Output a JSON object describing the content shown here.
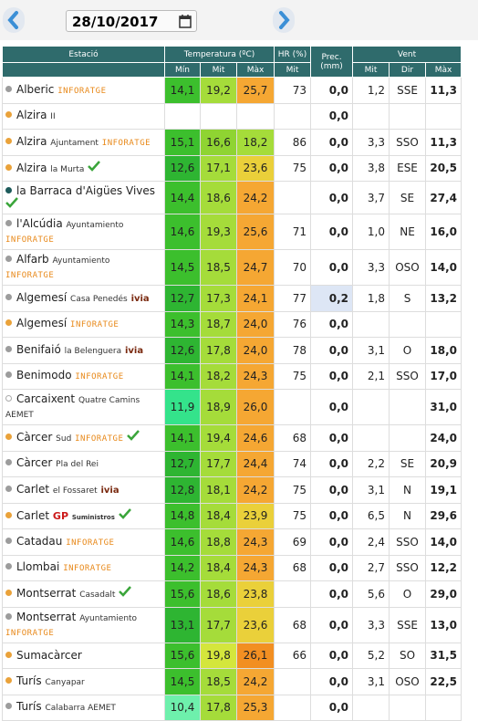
{
  "toolbar": {
    "date": "28/10/2017"
  },
  "table": {
    "header": {
      "station": "Estació",
      "temperature": "Temperatura (ºC)",
      "temperature_cols": [
        "Mín",
        "Mit",
        "Màx"
      ],
      "humidity": "HR (%)",
      "humidity_cols": [
        "Mit"
      ],
      "precipitation": "Prec. (mm)",
      "wind": "Vent",
      "wind_cols": [
        "Mit",
        "Dir",
        "Màx"
      ]
    },
    "rows": [
      {
        "dot": "gray",
        "label": [
          [
            "Alberic",
            "name"
          ],
          [
            "INFORATGE",
            "inforatge"
          ]
        ],
        "values": [
          "14,1",
          "19,2",
          "25,7",
          "73",
          "0,0",
          "1,2",
          "SSE",
          "11,3"
        ]
      },
      {
        "dot": "orange",
        "label": [
          [
            "Alzira",
            "name"
          ],
          [
            "II",
            "small"
          ]
        ],
        "values": [
          null,
          null,
          null,
          null,
          "0,0",
          null,
          null,
          null
        ]
      },
      {
        "dot": "orange",
        "label": [
          [
            "Alzira",
            "name"
          ],
          [
            "Ajuntament",
            "small"
          ],
          [
            "INFORATGE",
            "inforatge"
          ]
        ],
        "values": [
          "15,1",
          "16,6",
          "18,2",
          "86",
          "0,0",
          "3,3",
          "SSO",
          "11,3"
        ]
      },
      {
        "dot": "orange",
        "check": true,
        "label": [
          [
            "Alzira",
            "name"
          ],
          [
            "la Murta",
            "small"
          ]
        ],
        "values": [
          "12,6",
          "17,1",
          "23,6",
          "75",
          "0,0",
          "3,8",
          "ESE",
          "20,5"
        ]
      },
      {
        "dot": "teal",
        "check": true,
        "label": [
          [
            "la Barraca d'Aigües Vives",
            "name"
          ]
        ],
        "values": [
          "14,4",
          "18,6",
          "24,2",
          null,
          "0,0",
          "3,7",
          "SE",
          "27,4"
        ]
      },
      {
        "dot": "gray",
        "label": [
          [
            "l'Alcúdia",
            "name"
          ],
          [
            "Ayuntamiento",
            "small"
          ],
          [
            "INFORATGE",
            "inforatge"
          ]
        ],
        "values": [
          "14,6",
          "19,3",
          "25,6",
          "71",
          "0,0",
          "1,0",
          "NE",
          "16,0"
        ]
      },
      {
        "dot": "gray",
        "label": [
          [
            "Alfarb",
            "name"
          ],
          [
            "Ayuntamiento",
            "small"
          ],
          [
            "INFORATGE",
            "inforatge"
          ]
        ],
        "values": [
          "14,5",
          "18,5",
          "24,7",
          "70",
          "0,0",
          "3,3",
          "OSO",
          "14,0"
        ]
      },
      {
        "dot": "gray",
        "label": [
          [
            "Algemesí",
            "name"
          ],
          [
            "Casa Penedés",
            "small"
          ],
          [
            "ivia",
            "ivia"
          ]
        ],
        "values": [
          "12,7",
          "17,3",
          "24,1",
          "77",
          "0,2",
          "1,8",
          "S",
          "13,2"
        ]
      },
      {
        "dot": "orange",
        "label": [
          [
            "Algemesí",
            "name"
          ],
          [
            "INFORATGE",
            "inforatge"
          ]
        ],
        "values": [
          "14,3",
          "18,7",
          "24,0",
          "76",
          "0,0",
          null,
          null,
          null
        ]
      },
      {
        "dot": "gray",
        "label": [
          [
            "Benifaió",
            "name"
          ],
          [
            "la Belenguera",
            "small"
          ],
          [
            "ivia",
            "ivia"
          ]
        ],
        "values": [
          "12,6",
          "17,8",
          "24,0",
          "78",
          "0,0",
          "3,1",
          "O",
          "18,0"
        ]
      },
      {
        "dot": "gray",
        "label": [
          [
            "Benimodo",
            "name"
          ],
          [
            "INFORATGE",
            "inforatge"
          ]
        ],
        "values": [
          "14,1",
          "18,2",
          "24,3",
          "75",
          "0,0",
          "2,1",
          "SSO",
          "17,0"
        ]
      },
      {
        "dot": "hollow",
        "label": [
          [
            "Carcaixent",
            "name"
          ],
          [
            "Quatre Camins",
            "small"
          ],
          [
            "AEMET",
            "aemet"
          ]
        ],
        "values": [
          "11,9",
          "18,9",
          "26,0",
          null,
          "0,0",
          null,
          null,
          "31,0"
        ]
      },
      {
        "dot": "orange",
        "check": true,
        "label": [
          [
            "Càrcer",
            "name"
          ],
          [
            "Sud",
            "small"
          ],
          [
            "INFORATGE",
            "inforatge"
          ]
        ],
        "values": [
          "14,1",
          "19,4",
          "24,6",
          "68",
          "0,0",
          null,
          null,
          "24,0"
        ]
      },
      {
        "dot": "gray",
        "label": [
          [
            "Càrcer",
            "name"
          ],
          [
            "Pla del Rei",
            "small"
          ]
        ],
        "values": [
          "12,7",
          "17,7",
          "24,4",
          "74",
          "0,0",
          "2,2",
          "SE",
          "20,9"
        ]
      },
      {
        "dot": "gray",
        "label": [
          [
            "Carlet",
            "name"
          ],
          [
            "el Fossaret",
            "small"
          ],
          [
            "ivia",
            "ivia"
          ]
        ],
        "values": [
          "12,8",
          "18,1",
          "24,2",
          "75",
          "0,0",
          "3,1",
          "N",
          "19,1"
        ]
      },
      {
        "dot": "orange",
        "check": true,
        "label": [
          [
            "Carlet",
            "name"
          ],
          [
            "GP",
            "gp"
          ],
          [
            "Suministros",
            "tiny"
          ]
        ],
        "values": [
          "14,8",
          "18,4",
          "23,9",
          "75",
          "0,0",
          "6,5",
          "N",
          "29,6"
        ]
      },
      {
        "dot": "gray",
        "label": [
          [
            "Catadau",
            "name"
          ],
          [
            "INFORATGE",
            "inforatge"
          ]
        ],
        "values": [
          "14,6",
          "18,8",
          "24,3",
          "69",
          "0,0",
          "2,4",
          "SSO",
          "14,0"
        ]
      },
      {
        "dot": "gray",
        "label": [
          [
            "Llombai",
            "name"
          ],
          [
            "INFORATGE",
            "inforatge"
          ]
        ],
        "values": [
          "14,2",
          "18,4",
          "24,3",
          "68",
          "0,0",
          "2,7",
          "SSO",
          "12,2"
        ]
      },
      {
        "dot": "orange",
        "check": true,
        "label": [
          [
            "Montserrat",
            "name"
          ],
          [
            "Casadalt",
            "small"
          ]
        ],
        "values": [
          "15,6",
          "18,6",
          "23,8",
          null,
          "0,0",
          "5,6",
          "O",
          "29,0"
        ]
      },
      {
        "dot": "gray",
        "label": [
          [
            "Montserrat",
            "name"
          ],
          [
            "Ayuntamiento",
            "small"
          ],
          [
            "INFORATGE",
            "inforatge"
          ]
        ],
        "values": [
          "13,1",
          "17,7",
          "23,6",
          "68",
          "0,0",
          "3,3",
          "SSE",
          "13,0"
        ]
      },
      {
        "dot": "orange",
        "label": [
          [
            "Sumacàrcer",
            "name"
          ]
        ],
        "values": [
          "15,6",
          "19,8",
          "26,1",
          "66",
          "0,0",
          "5,2",
          "SO",
          "31,5"
        ]
      },
      {
        "dot": "orange",
        "label": [
          [
            "Turís",
            "name"
          ],
          [
            "Canyapar",
            "small"
          ]
        ],
        "values": [
          "14,5",
          "18,5",
          "24,2",
          null,
          "0,0",
          "3,1",
          "OSO",
          "22,5"
        ]
      },
      {
        "dot": "gray",
        "label": [
          [
            "Turís",
            "name"
          ],
          [
            "Calabarra AEMET",
            "small"
          ]
        ],
        "values": [
          "10,4",
          "17,8",
          "25,3",
          null,
          "0,0",
          null,
          null,
          null
        ]
      }
    ]
  }
}
